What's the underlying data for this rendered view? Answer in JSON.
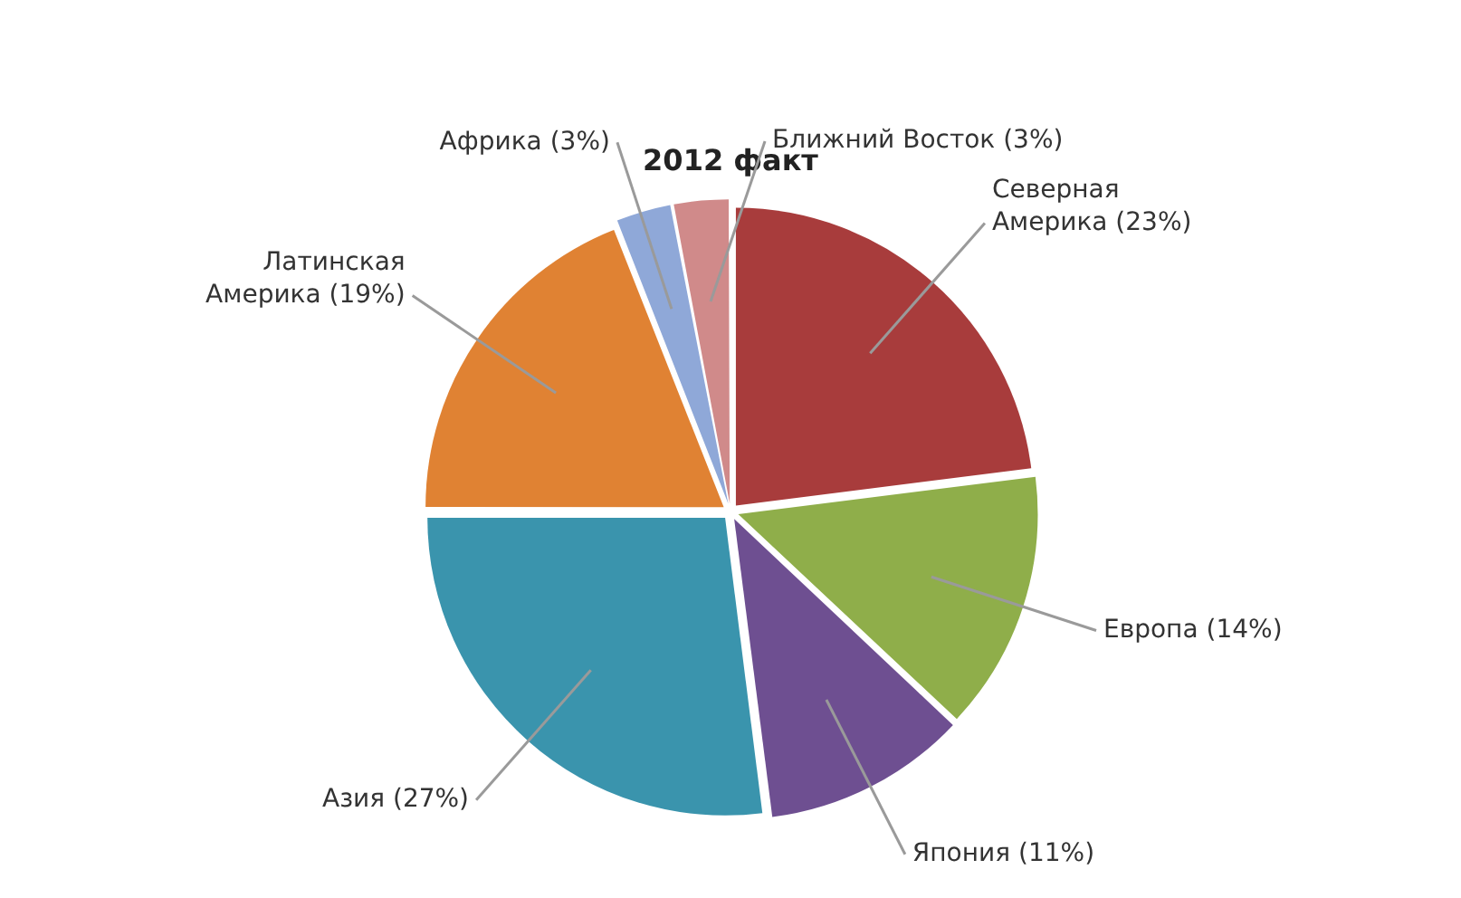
{
  "chart_data": {
    "type": "pie",
    "title": "2012 факт",
    "categories": [
      "Северная Америка",
      "Европа",
      "Япония",
      "Азия",
      "Латинская Америка",
      "Африка",
      "Ближний Восток"
    ],
    "values": [
      23,
      14,
      11,
      27,
      19,
      3,
      3
    ],
    "value_labels": [
      "(23%)",
      "(14%)",
      "(11%)",
      "(27%)",
      "(19%)",
      "(3%)",
      "(3%)"
    ],
    "colors": [
      "#a83c3c",
      "#8fae4a",
      "#6e4f91",
      "#3a94ad",
      "#e08233",
      "#8fa8d8",
      "#d08a8a"
    ],
    "legend": false
  }
}
